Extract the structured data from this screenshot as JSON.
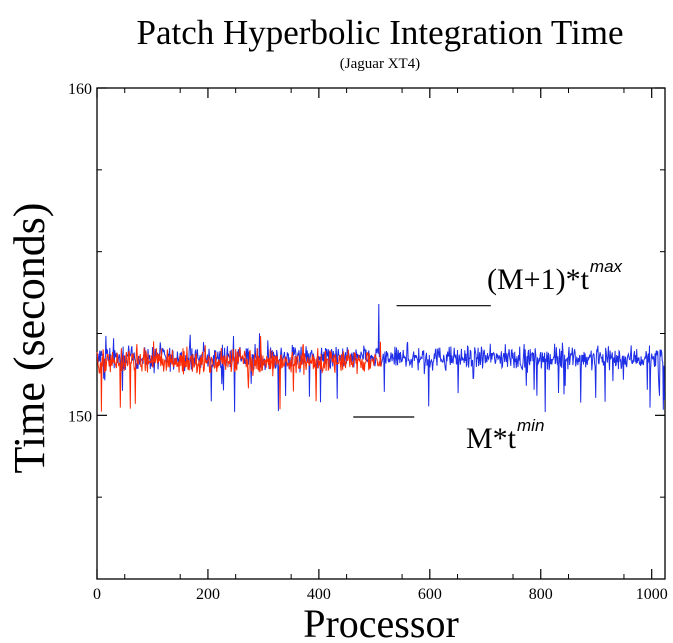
{
  "chart_data": {
    "type": "line",
    "title": "Patch Hyperbolic Integration Time",
    "subtitle": "(Jaguar XT4)",
    "xlabel": "Processor",
    "ylabel": "Time (seconds)",
    "xlim": [
      0,
      1024
    ],
    "ylim": [
      145,
      160
    ],
    "x_ticks": [
      0,
      200,
      400,
      600,
      800,
      1000
    ],
    "y_ticks": [
      150,
      160
    ],
    "grid": false,
    "series": [
      {
        "color": "#1e2de6",
        "x_range": [
          0,
          1023
        ],
        "mean": 151.75,
        "spread": 0.35,
        "min_observed": 150.1,
        "max_observed": 153.4
      },
      {
        "color": "#ff2a00",
        "x_range": [
          0,
          512
        ],
        "mean": 151.65,
        "spread": 0.4,
        "min_observed": 150.1,
        "max_observed": 152.7
      }
    ],
    "reference_lines": [
      {
        "label": "(M+1)*t",
        "superscript": "max",
        "y": 153.35,
        "x_range": [
          540,
          710
        ]
      },
      {
        "label": "M*t",
        "superscript": "min",
        "y": 149.95,
        "x_range": [
          462,
          572
        ]
      }
    ]
  }
}
